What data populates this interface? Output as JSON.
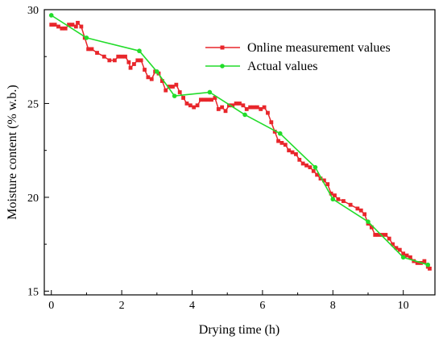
{
  "chart_data": {
    "type": "line",
    "title": "",
    "xlabel": "Drying time (h)",
    "ylabel": "Moisture content (% w.b.)",
    "xlim": [
      -0.2,
      10.9
    ],
    "ylim": [
      14.8,
      30
    ],
    "xticks": [
      0,
      2,
      4,
      6,
      8,
      10
    ],
    "yticks": [
      15,
      20,
      25,
      30
    ],
    "xtick_labels": [
      "0",
      "2",
      "4",
      "6",
      "8",
      "10"
    ],
    "ytick_labels": [
      "15",
      "20",
      "25",
      "30"
    ],
    "grid": false,
    "legend_position": "top-right",
    "series": [
      {
        "name": "Online measurement values",
        "color": "#e8262b",
        "marker": "square",
        "points": [
          [
            0.0,
            29.2
          ],
          [
            0.1,
            29.2
          ],
          [
            0.2,
            29.1
          ],
          [
            0.3,
            29.0
          ],
          [
            0.4,
            29.0
          ],
          [
            0.5,
            29.2
          ],
          [
            0.6,
            29.2
          ],
          [
            0.7,
            29.1
          ],
          [
            0.75,
            29.3
          ],
          [
            0.85,
            29.1
          ],
          [
            0.95,
            28.5
          ],
          [
            1.05,
            27.9
          ],
          [
            1.15,
            27.9
          ],
          [
            1.3,
            27.7
          ],
          [
            1.5,
            27.5
          ],
          [
            1.65,
            27.3
          ],
          [
            1.8,
            27.3
          ],
          [
            1.9,
            27.5
          ],
          [
            2.0,
            27.5
          ],
          [
            2.1,
            27.5
          ],
          [
            2.2,
            27.2
          ],
          [
            2.25,
            26.9
          ],
          [
            2.35,
            27.1
          ],
          [
            2.45,
            27.3
          ],
          [
            2.55,
            27.3
          ],
          [
            2.65,
            26.8
          ],
          [
            2.75,
            26.4
          ],
          [
            2.85,
            26.3
          ],
          [
            2.95,
            26.7
          ],
          [
            3.05,
            26.6
          ],
          [
            3.15,
            26.2
          ],
          [
            3.25,
            25.7
          ],
          [
            3.35,
            25.9
          ],
          [
            3.45,
            25.9
          ],
          [
            3.55,
            26.0
          ],
          [
            3.65,
            25.6
          ],
          [
            3.75,
            25.3
          ],
          [
            3.85,
            25.0
          ],
          [
            3.95,
            24.9
          ],
          [
            4.05,
            24.8
          ],
          [
            4.15,
            24.9
          ],
          [
            4.25,
            25.2
          ],
          [
            4.35,
            25.2
          ],
          [
            4.45,
            25.2
          ],
          [
            4.55,
            25.2
          ],
          [
            4.65,
            25.3
          ],
          [
            4.75,
            24.7
          ],
          [
            4.85,
            24.8
          ],
          [
            4.95,
            24.6
          ],
          [
            5.05,
            24.9
          ],
          [
            5.15,
            24.9
          ],
          [
            5.25,
            25.0
          ],
          [
            5.35,
            25.0
          ],
          [
            5.45,
            24.9
          ],
          [
            5.55,
            24.7
          ],
          [
            5.65,
            24.8
          ],
          [
            5.75,
            24.8
          ],
          [
            5.85,
            24.8
          ],
          [
            5.95,
            24.7
          ],
          [
            6.05,
            24.8
          ],
          [
            6.15,
            24.5
          ],
          [
            6.25,
            24.0
          ],
          [
            6.35,
            23.5
          ],
          [
            6.45,
            23.0
          ],
          [
            6.55,
            22.9
          ],
          [
            6.65,
            22.8
          ],
          [
            6.75,
            22.5
          ],
          [
            6.85,
            22.4
          ],
          [
            6.95,
            22.3
          ],
          [
            7.05,
            22.0
          ],
          [
            7.15,
            21.8
          ],
          [
            7.25,
            21.7
          ],
          [
            7.35,
            21.6
          ],
          [
            7.45,
            21.4
          ],
          [
            7.55,
            21.2
          ],
          [
            7.65,
            21.0
          ],
          [
            7.75,
            20.9
          ],
          [
            7.85,
            20.7
          ],
          [
            7.95,
            20.2
          ],
          [
            8.05,
            20.1
          ],
          [
            8.15,
            19.9
          ],
          [
            8.3,
            19.8
          ],
          [
            8.5,
            19.6
          ],
          [
            8.7,
            19.4
          ],
          [
            8.8,
            19.3
          ],
          [
            8.9,
            19.1
          ],
          [
            9.0,
            18.6
          ],
          [
            9.1,
            18.4
          ],
          [
            9.2,
            18.0
          ],
          [
            9.3,
            18.0
          ],
          [
            9.4,
            18.0
          ],
          [
            9.5,
            18.0
          ],
          [
            9.6,
            17.8
          ],
          [
            9.7,
            17.5
          ],
          [
            9.8,
            17.3
          ],
          [
            9.9,
            17.2
          ],
          [
            10.0,
            17.0
          ],
          [
            10.1,
            16.9
          ],
          [
            10.2,
            16.8
          ],
          [
            10.3,
            16.6
          ],
          [
            10.4,
            16.5
          ],
          [
            10.5,
            16.5
          ],
          [
            10.6,
            16.6
          ],
          [
            10.7,
            16.3
          ],
          [
            10.75,
            16.2
          ]
        ]
      },
      {
        "name": "Actual values",
        "color": "#22dc2a",
        "marker": "circle",
        "points": [
          [
            0.0,
            29.7
          ],
          [
            1.0,
            28.5
          ],
          [
            2.5,
            27.8
          ],
          [
            3.0,
            26.7
          ],
          [
            3.5,
            25.4
          ],
          [
            4.5,
            25.6
          ],
          [
            5.5,
            24.4
          ],
          [
            6.5,
            23.4
          ],
          [
            7.5,
            21.6
          ],
          [
            8.0,
            19.9
          ],
          [
            9.0,
            18.7
          ],
          [
            10.0,
            16.8
          ],
          [
            10.7,
            16.4
          ]
        ]
      }
    ]
  }
}
